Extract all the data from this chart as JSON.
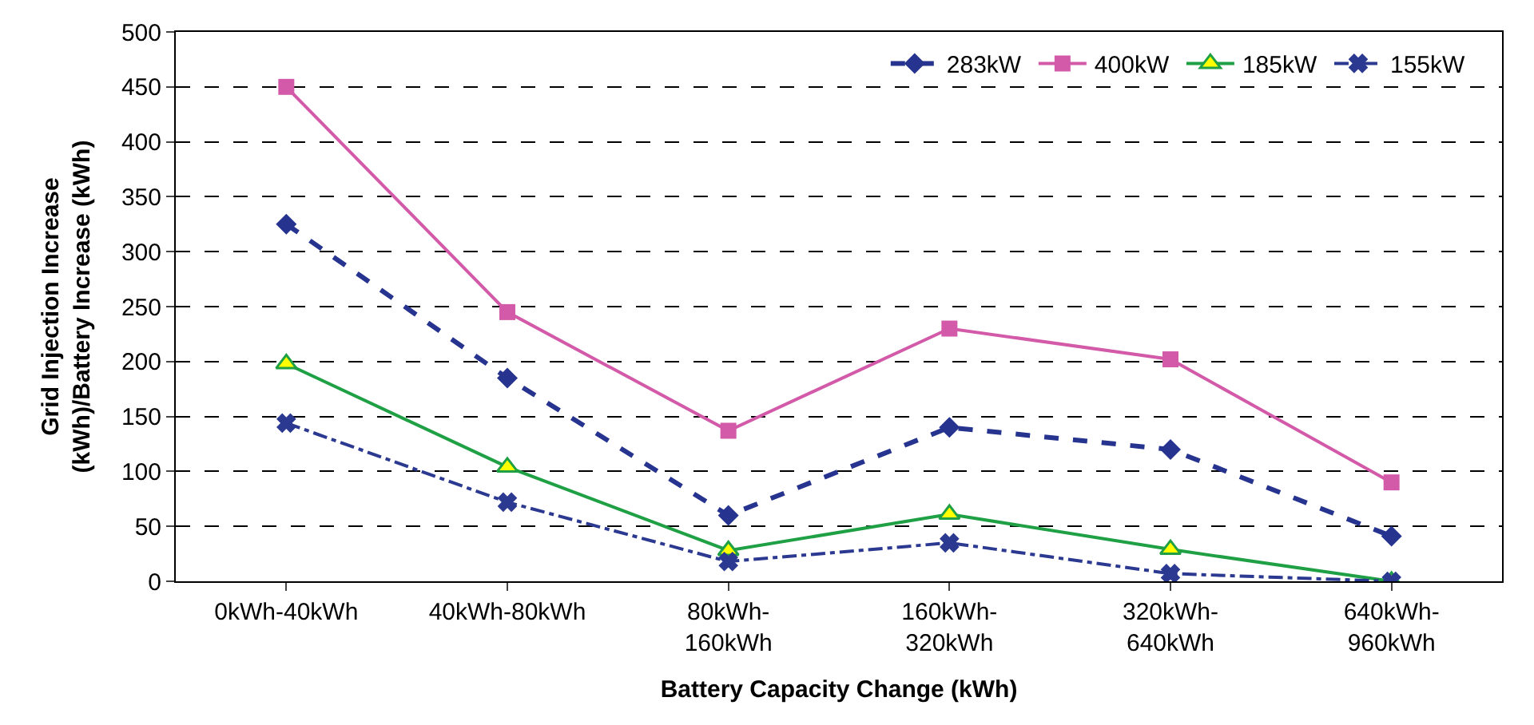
{
  "chart_data": {
    "type": "line",
    "xlabel": "Battery Capacity Change (kWh)",
    "ylabel": "Grid Injection Increase\n(kWh)/Battery Increase (kWh)",
    "categories": [
      "0kWh-40kWh",
      "40kWh-80kWh",
      "80kWh-\n160kWh",
      "160kWh-\n320kWh",
      "320kWh-\n640kWh",
      "640kWh-\n960kWh"
    ],
    "series": [
      {
        "name": "283kW",
        "color": "#26348f",
        "marker": "diamond",
        "line_style": "dashed",
        "values": [
          325,
          185,
          60,
          140,
          120,
          41
        ]
      },
      {
        "name": "400kW",
        "color": "#d35aa8",
        "marker": "square",
        "line_style": "solid",
        "values": [
          450,
          245,
          137,
          230,
          202,
          90
        ]
      },
      {
        "name": "185kW",
        "color": "#1fa045",
        "marker": "triangle",
        "line_style": "solid",
        "values": [
          198,
          104,
          28,
          61,
          29,
          0
        ]
      },
      {
        "name": "155kW",
        "color": "#2b3990",
        "marker": "cross",
        "line_style": "dashdot",
        "values": [
          144,
          72,
          18,
          35,
          7,
          0
        ]
      }
    ],
    "ylim": [
      0,
      500
    ],
    "yticks": [
      0,
      50,
      100,
      150,
      200,
      250,
      300,
      350,
      400,
      450,
      500
    ],
    "grid": "y",
    "legend": "top right"
  }
}
